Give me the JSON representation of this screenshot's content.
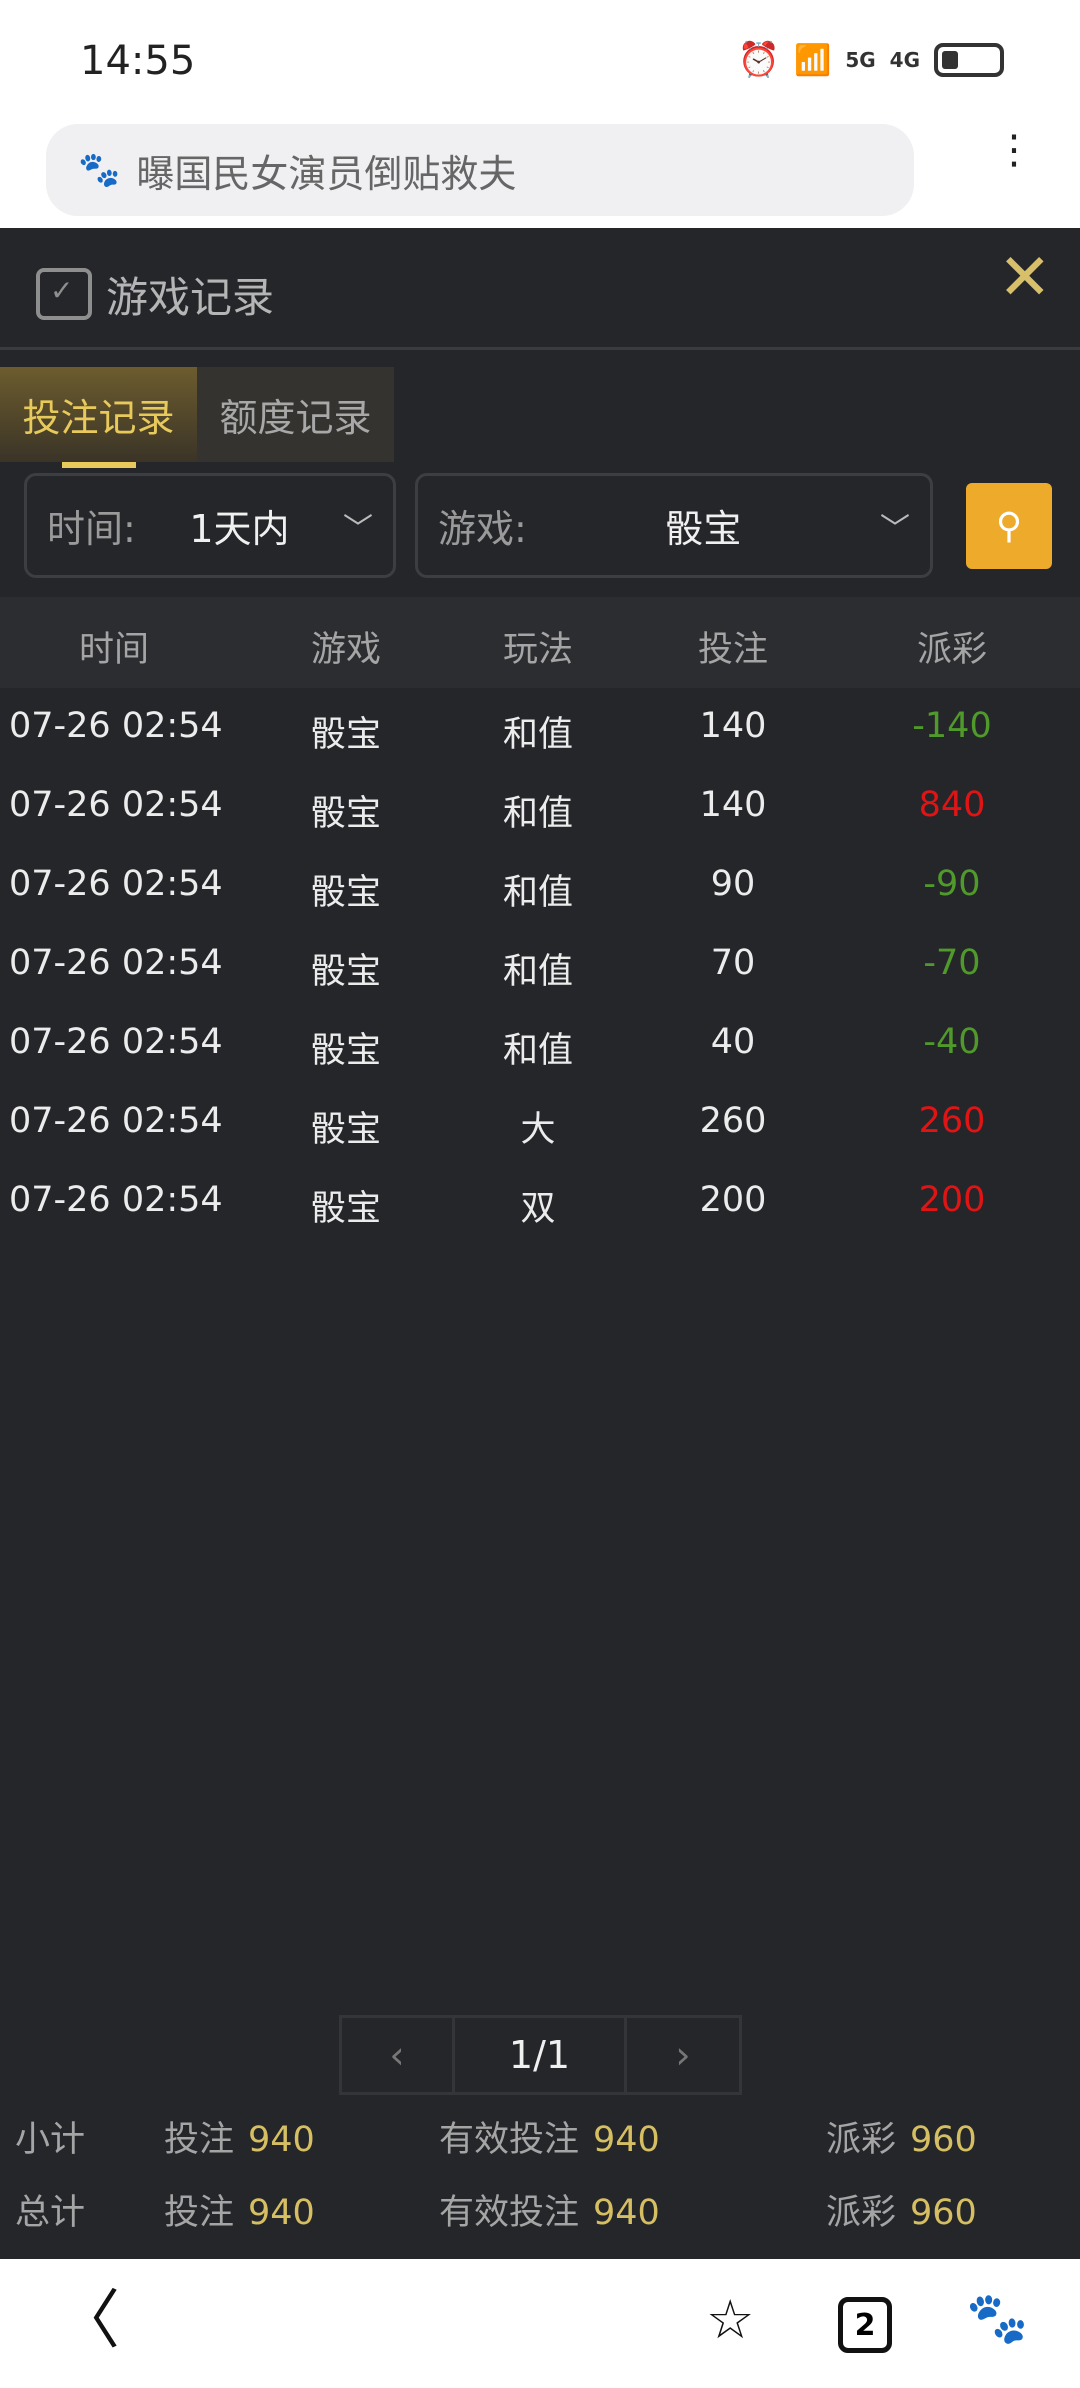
{
  "status": {
    "time": "14:55",
    "net1": "5G",
    "net2": "4G"
  },
  "browser": {
    "url_text": "曝国民女演员倒贴救夫",
    "tab_count": "2"
  },
  "panel": {
    "title": "游戏记录",
    "tabs": [
      {
        "label": "投注记录",
        "active": true
      },
      {
        "label": "额度记录",
        "active": false
      }
    ],
    "filters": {
      "time_label": "时间:",
      "time_value": "1天内",
      "game_label": "游戏:",
      "game_value": "骰宝"
    },
    "columns": [
      "时间",
      "游戏",
      "玩法",
      "投注",
      "派彩"
    ],
    "rows": [
      {
        "time": "07-26 02:54",
        "game": "骰宝",
        "play": "和值",
        "bet": "140",
        "payout": "-140"
      },
      {
        "time": "07-26 02:54",
        "game": "骰宝",
        "play": "和值",
        "bet": "140",
        "payout": "840"
      },
      {
        "time": "07-26 02:54",
        "game": "骰宝",
        "play": "和值",
        "bet": "90",
        "payout": "-90"
      },
      {
        "time": "07-26 02:54",
        "game": "骰宝",
        "play": "和值",
        "bet": "70",
        "payout": "-70"
      },
      {
        "time": "07-26 02:54",
        "game": "骰宝",
        "play": "和值",
        "bet": "40",
        "payout": "-40"
      },
      {
        "time": "07-26 02:54",
        "game": "骰宝",
        "play": "大",
        "bet": "260",
        "payout": "260"
      },
      {
        "time": "07-26 02:54",
        "game": "骰宝",
        "play": "双",
        "bet": "200",
        "payout": "200"
      }
    ],
    "pager": {
      "prev": "‹",
      "page": "1/1",
      "next": "›"
    },
    "subtotal": {
      "label": "小计",
      "bet_label": "投注",
      "bet": "940",
      "valid_label": "有效投注",
      "valid": "940",
      "payout_label": "派彩",
      "payout": "960"
    },
    "total": {
      "label": "总计",
      "bet_label": "投注",
      "bet": "940",
      "valid_label": "有效投注",
      "valid": "940",
      "payout_label": "派彩",
      "payout": "960"
    }
  },
  "colors": {
    "loss": "#4f9a2a",
    "win": "#e01414",
    "gold": "#d5bf62",
    "search": "#eeaa2a"
  }
}
